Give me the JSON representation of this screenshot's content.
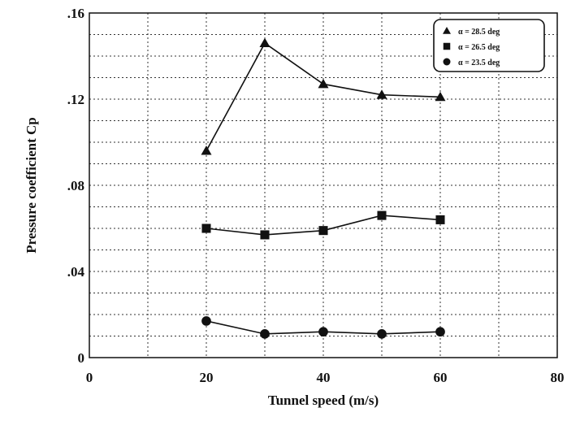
{
  "chart_data": {
    "type": "line",
    "xlabel": "Tunnel speed (m/s)",
    "ylabel": "Pressure coefficient Cp",
    "xlim": [
      0,
      80
    ],
    "ylim": [
      0,
      0.16
    ],
    "x_ticks": [
      {
        "value": 0,
        "label": "0"
      },
      {
        "value": 20,
        "label": "20"
      },
      {
        "value": 40,
        "label": "40"
      },
      {
        "value": 60,
        "label": "60"
      },
      {
        "value": 80,
        "label": "80"
      }
    ],
    "y_ticks": [
      {
        "value": 0,
        "label": "0"
      },
      {
        "value": 0.04,
        "label": ".04"
      },
      {
        "value": 0.08,
        "label": ".08"
      },
      {
        "value": 0.12,
        "label": ".12"
      },
      {
        "value": 0.16,
        "label": ".16"
      }
    ],
    "grid": true,
    "legend_position": "top-right",
    "x": [
      20,
      30,
      40,
      50,
      60
    ],
    "series": [
      {
        "name": "α = 28.5 deg",
        "marker": "triangle",
        "values": [
          0.096,
          0.146,
          0.127,
          0.122,
          0.121
        ]
      },
      {
        "name": "α = 26.5 deg",
        "marker": "square",
        "values": [
          0.06,
          0.057,
          0.059,
          0.066,
          0.064
        ]
      },
      {
        "name": "α = 23.5 deg",
        "marker": "circle",
        "values": [
          0.017,
          0.011,
          0.012,
          0.011,
          0.012
        ]
      }
    ],
    "color": "#111111"
  }
}
